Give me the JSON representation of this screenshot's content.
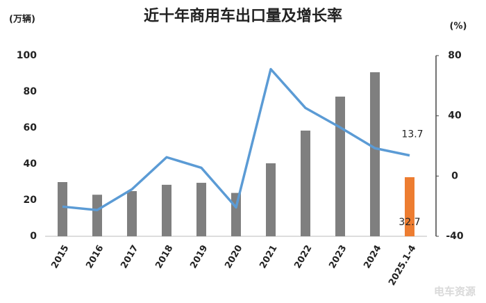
{
  "chart_data": {
    "type": "bar-line",
    "title": "近十年商用车出口量及增长率",
    "y_label": "(万辆)",
    "y2_label": "(%)",
    "watermark": "电车资源",
    "categories": [
      "2015",
      "2016",
      "2017",
      "2018",
      "2019",
      "2020",
      "2021",
      "2022",
      "2023",
      "2024",
      "2025.1-4"
    ],
    "series": [
      {
        "type": "bar",
        "colors": [
          "#7f7f7f",
          "#7f7f7f",
          "#7f7f7f",
          "#7f7f7f",
          "#7f7f7f",
          "#7f7f7f",
          "#7f7f7f",
          "#7f7f7f",
          "#7f7f7f",
          "#7f7f7f",
          "#ed7d31"
        ],
        "values": [
          30,
          23,
          25,
          28.5,
          29.6,
          24,
          40.4,
          58.5,
          77.3,
          90.8,
          32.7
        ],
        "value_labels": [
          null,
          null,
          null,
          null,
          null,
          null,
          null,
          null,
          null,
          null,
          "32.7"
        ]
      },
      {
        "type": "line",
        "axis": "y2",
        "color": "#5b9bd5",
        "values": [
          -20.3,
          -22.6,
          -8.8,
          12.5,
          5.5,
          -20.8,
          71,
          45.2,
          32.3,
          18.5,
          13.7
        ],
        "value_labels": [
          null,
          null,
          null,
          null,
          null,
          null,
          null,
          null,
          null,
          null,
          "13.7"
        ]
      }
    ],
    "ylim": [
      0,
      100
    ],
    "yticks": [
      0,
      20,
      40,
      60,
      80,
      100
    ],
    "y2lim": [
      -40,
      80
    ],
    "y2ticks": [
      -40,
      0,
      40,
      80
    ]
  }
}
